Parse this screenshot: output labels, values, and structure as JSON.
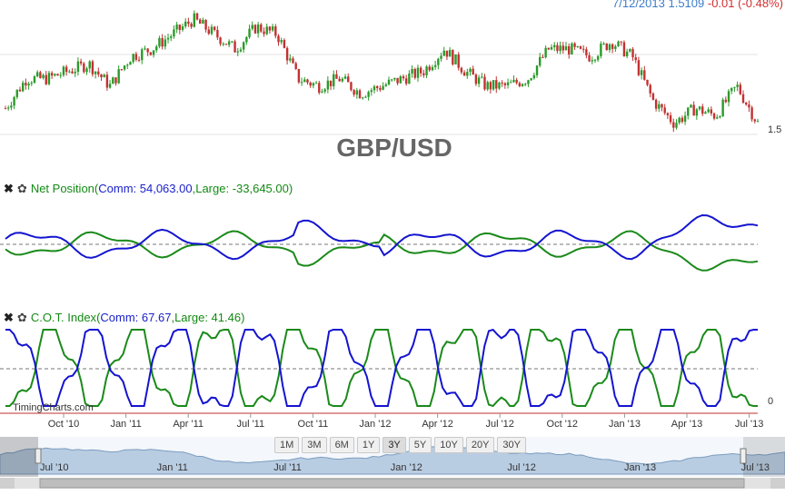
{
  "header": {
    "date": "7/12/2013",
    "price": "1.5109",
    "change": "-0.01",
    "change_pct": "(-0.48%)"
  },
  "main_chart": {
    "watermark": "GBP/USD",
    "y_tick_label": "1.5"
  },
  "panel_net_position": {
    "close_icon": "✖",
    "settings_icon": "✿",
    "name": "Net Position",
    "open": "(",
    "comm_text": "Comm: 54,063.00",
    "sep": ",",
    "large_text": "Large: -33,645.00",
    "close": ")"
  },
  "panel_cot_index": {
    "close_icon": "✖",
    "settings_icon": "✿",
    "name": "C.O.T. Index",
    "open": "(",
    "comm_text": "Comm: 67.67",
    "sep": ",",
    "large_text": "Large: 41.46",
    "close": ")",
    "y_tick_label": "0",
    "credit": "TimingCharts.com"
  },
  "x_axis_labels": [
    "Oct '10",
    "Jan '11",
    "Apr '11",
    "Jul '11",
    "Oct '11",
    "Jan '12",
    "Apr '12",
    "Jul '12",
    "Oct '12",
    "Jan '13",
    "Apr '13",
    "Jul '13"
  ],
  "navigator_labels": [
    "Jul '10",
    "Jan '11",
    "Jul '11",
    "Jan '12",
    "Jul '12",
    "Jan '13",
    "Jul '13"
  ],
  "range_selector": {
    "buttons": [
      "1M",
      "3M",
      "6M",
      "1Y",
      "3Y",
      "5Y",
      "10Y",
      "20Y",
      "30Y"
    ],
    "selected": "3Y"
  },
  "colors": {
    "up": "#2a9a2a",
    "down": "#c23131",
    "commercial": "#1414d0",
    "large": "#1a8a1a",
    "navigator_fill": "#b9cde2"
  },
  "chart_data": [
    {
      "type": "candlestick",
      "title": "GBP/USD",
      "x": [
        "2010-07",
        "2010-08",
        "2010-09",
        "2010-10",
        "2010-11",
        "2010-12",
        "2011-01",
        "2011-02",
        "2011-03",
        "2011-04",
        "2011-05",
        "2011-06",
        "2011-07",
        "2011-08",
        "2011-09",
        "2011-10",
        "2011-11",
        "2011-12",
        "2012-01",
        "2012-02",
        "2012-03",
        "2012-04",
        "2012-05",
        "2012-06",
        "2012-07",
        "2012-08",
        "2012-09",
        "2012-10",
        "2012-11",
        "2012-12",
        "2013-01",
        "2013-02",
        "2013-03",
        "2013-04",
        "2013-05",
        "2013-06",
        "2013-07"
      ],
      "close": [
        1.53,
        1.57,
        1.57,
        1.58,
        1.59,
        1.56,
        1.6,
        1.61,
        1.63,
        1.65,
        1.63,
        1.61,
        1.64,
        1.63,
        1.57,
        1.56,
        1.57,
        1.55,
        1.56,
        1.57,
        1.58,
        1.61,
        1.58,
        1.56,
        1.56,
        1.57,
        1.61,
        1.61,
        1.6,
        1.62,
        1.6,
        1.54,
        1.51,
        1.53,
        1.52,
        1.56,
        1.51
      ],
      "last": 1.5109,
      "y_tick": 1.5
    },
    {
      "type": "line",
      "title": "Net Position",
      "series": [
        {
          "name": "Comm",
          "last": 54063.0
        },
        {
          "name": "Large",
          "last": -33645.0
        }
      ]
    },
    {
      "type": "line",
      "title": "C.O.T. Index",
      "series": [
        {
          "name": "Comm",
          "last": 67.67
        },
        {
          "name": "Large",
          "last": 41.46
        }
      ],
      "ylim": [
        0,
        100
      ]
    }
  ]
}
